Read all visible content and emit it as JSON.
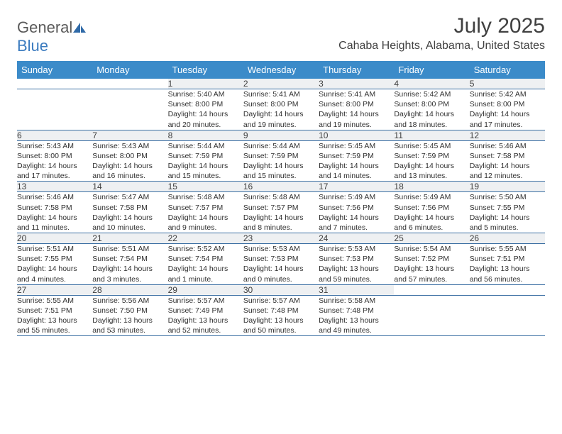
{
  "logo": {
    "text1": "General",
    "text2": "Blue"
  },
  "title": "July 2025",
  "location": "Cahaba Heights, Alabama, United States",
  "colors": {
    "header_bg": "#3b8bc9",
    "header_text": "#ffffff",
    "daynum_bg": "#eef0f2",
    "row_border": "#3b6fa3",
    "body_text": "#303030",
    "title_text": "#404040"
  },
  "weekdays": [
    "Sunday",
    "Monday",
    "Tuesday",
    "Wednesday",
    "Thursday",
    "Friday",
    "Saturday"
  ],
  "weeks": [
    [
      null,
      null,
      {
        "n": "1",
        "sr": "Sunrise: 5:40 AM",
        "ss": "Sunset: 8:00 PM",
        "d1": "Daylight: 14 hours",
        "d2": "and 20 minutes."
      },
      {
        "n": "2",
        "sr": "Sunrise: 5:41 AM",
        "ss": "Sunset: 8:00 PM",
        "d1": "Daylight: 14 hours",
        "d2": "and 19 minutes."
      },
      {
        "n": "3",
        "sr": "Sunrise: 5:41 AM",
        "ss": "Sunset: 8:00 PM",
        "d1": "Daylight: 14 hours",
        "d2": "and 19 minutes."
      },
      {
        "n": "4",
        "sr": "Sunrise: 5:42 AM",
        "ss": "Sunset: 8:00 PM",
        "d1": "Daylight: 14 hours",
        "d2": "and 18 minutes."
      },
      {
        "n": "5",
        "sr": "Sunrise: 5:42 AM",
        "ss": "Sunset: 8:00 PM",
        "d1": "Daylight: 14 hours",
        "d2": "and 17 minutes."
      }
    ],
    [
      {
        "n": "6",
        "sr": "Sunrise: 5:43 AM",
        "ss": "Sunset: 8:00 PM",
        "d1": "Daylight: 14 hours",
        "d2": "and 17 minutes."
      },
      {
        "n": "7",
        "sr": "Sunrise: 5:43 AM",
        "ss": "Sunset: 8:00 PM",
        "d1": "Daylight: 14 hours",
        "d2": "and 16 minutes."
      },
      {
        "n": "8",
        "sr": "Sunrise: 5:44 AM",
        "ss": "Sunset: 7:59 PM",
        "d1": "Daylight: 14 hours",
        "d2": "and 15 minutes."
      },
      {
        "n": "9",
        "sr": "Sunrise: 5:44 AM",
        "ss": "Sunset: 7:59 PM",
        "d1": "Daylight: 14 hours",
        "d2": "and 15 minutes."
      },
      {
        "n": "10",
        "sr": "Sunrise: 5:45 AM",
        "ss": "Sunset: 7:59 PM",
        "d1": "Daylight: 14 hours",
        "d2": "and 14 minutes."
      },
      {
        "n": "11",
        "sr": "Sunrise: 5:45 AM",
        "ss": "Sunset: 7:59 PM",
        "d1": "Daylight: 14 hours",
        "d2": "and 13 minutes."
      },
      {
        "n": "12",
        "sr": "Sunrise: 5:46 AM",
        "ss": "Sunset: 7:58 PM",
        "d1": "Daylight: 14 hours",
        "d2": "and 12 minutes."
      }
    ],
    [
      {
        "n": "13",
        "sr": "Sunrise: 5:46 AM",
        "ss": "Sunset: 7:58 PM",
        "d1": "Daylight: 14 hours",
        "d2": "and 11 minutes."
      },
      {
        "n": "14",
        "sr": "Sunrise: 5:47 AM",
        "ss": "Sunset: 7:58 PM",
        "d1": "Daylight: 14 hours",
        "d2": "and 10 minutes."
      },
      {
        "n": "15",
        "sr": "Sunrise: 5:48 AM",
        "ss": "Sunset: 7:57 PM",
        "d1": "Daylight: 14 hours",
        "d2": "and 9 minutes."
      },
      {
        "n": "16",
        "sr": "Sunrise: 5:48 AM",
        "ss": "Sunset: 7:57 PM",
        "d1": "Daylight: 14 hours",
        "d2": "and 8 minutes."
      },
      {
        "n": "17",
        "sr": "Sunrise: 5:49 AM",
        "ss": "Sunset: 7:56 PM",
        "d1": "Daylight: 14 hours",
        "d2": "and 7 minutes."
      },
      {
        "n": "18",
        "sr": "Sunrise: 5:49 AM",
        "ss": "Sunset: 7:56 PM",
        "d1": "Daylight: 14 hours",
        "d2": "and 6 minutes."
      },
      {
        "n": "19",
        "sr": "Sunrise: 5:50 AM",
        "ss": "Sunset: 7:55 PM",
        "d1": "Daylight: 14 hours",
        "d2": "and 5 minutes."
      }
    ],
    [
      {
        "n": "20",
        "sr": "Sunrise: 5:51 AM",
        "ss": "Sunset: 7:55 PM",
        "d1": "Daylight: 14 hours",
        "d2": "and 4 minutes."
      },
      {
        "n": "21",
        "sr": "Sunrise: 5:51 AM",
        "ss": "Sunset: 7:54 PM",
        "d1": "Daylight: 14 hours",
        "d2": "and 3 minutes."
      },
      {
        "n": "22",
        "sr": "Sunrise: 5:52 AM",
        "ss": "Sunset: 7:54 PM",
        "d1": "Daylight: 14 hours",
        "d2": "and 1 minute."
      },
      {
        "n": "23",
        "sr": "Sunrise: 5:53 AM",
        "ss": "Sunset: 7:53 PM",
        "d1": "Daylight: 14 hours",
        "d2": "and 0 minutes."
      },
      {
        "n": "24",
        "sr": "Sunrise: 5:53 AM",
        "ss": "Sunset: 7:53 PM",
        "d1": "Daylight: 13 hours",
        "d2": "and 59 minutes."
      },
      {
        "n": "25",
        "sr": "Sunrise: 5:54 AM",
        "ss": "Sunset: 7:52 PM",
        "d1": "Daylight: 13 hours",
        "d2": "and 57 minutes."
      },
      {
        "n": "26",
        "sr": "Sunrise: 5:55 AM",
        "ss": "Sunset: 7:51 PM",
        "d1": "Daylight: 13 hours",
        "d2": "and 56 minutes."
      }
    ],
    [
      {
        "n": "27",
        "sr": "Sunrise: 5:55 AM",
        "ss": "Sunset: 7:51 PM",
        "d1": "Daylight: 13 hours",
        "d2": "and 55 minutes."
      },
      {
        "n": "28",
        "sr": "Sunrise: 5:56 AM",
        "ss": "Sunset: 7:50 PM",
        "d1": "Daylight: 13 hours",
        "d2": "and 53 minutes."
      },
      {
        "n": "29",
        "sr": "Sunrise: 5:57 AM",
        "ss": "Sunset: 7:49 PM",
        "d1": "Daylight: 13 hours",
        "d2": "and 52 minutes."
      },
      {
        "n": "30",
        "sr": "Sunrise: 5:57 AM",
        "ss": "Sunset: 7:48 PM",
        "d1": "Daylight: 13 hours",
        "d2": "and 50 minutes."
      },
      {
        "n": "31",
        "sr": "Sunrise: 5:58 AM",
        "ss": "Sunset: 7:48 PM",
        "d1": "Daylight: 13 hours",
        "d2": "and 49 minutes."
      },
      null,
      null
    ]
  ]
}
